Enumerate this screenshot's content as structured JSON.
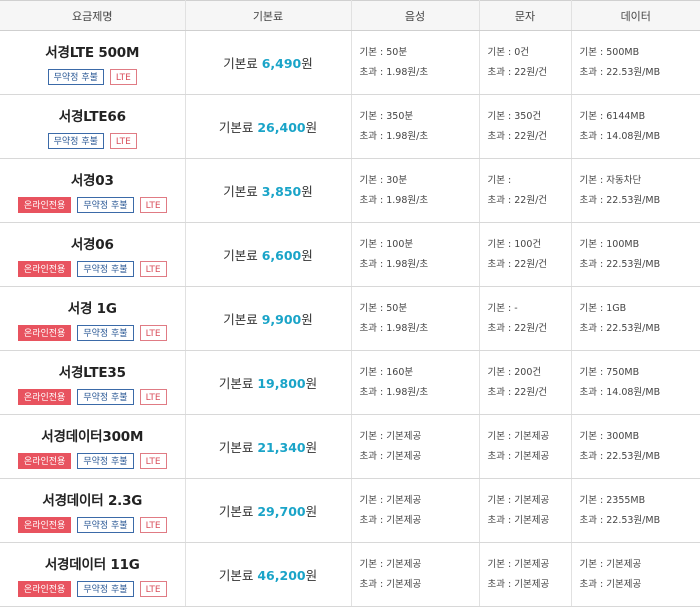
{
  "header": {
    "col_name": "요금제명",
    "col_fee": "기본료",
    "col_voice": "음성",
    "col_sms": "문자",
    "col_data": "데이터"
  },
  "labels": {
    "fee_prefix": "기본료 ",
    "won": "원",
    "basic": "기본 : ",
    "excess": "초과 : "
  },
  "plans": [
    {
      "name": "서경LTE 500M",
      "badges": [
        "무약정 후불",
        "LTE"
      ],
      "fee": "6,490",
      "voice": [
        "50분",
        "1.98원/초"
      ],
      "sms": [
        "0건",
        "22원/건"
      ],
      "data": [
        "500MB",
        "22.53원/MB"
      ]
    },
    {
      "name": "서경LTE66",
      "badges": [
        "무약정 후불",
        "LTE"
      ],
      "fee": "26,400",
      "voice": [
        "350분",
        "1.98원/초"
      ],
      "sms": [
        "350건",
        "22원/건"
      ],
      "data": [
        "6144MB",
        "14.08원/MB"
      ]
    },
    {
      "name": "서경03",
      "badges": [
        "온라인전용",
        "무약정 후불",
        "LTE"
      ],
      "fee": "3,850",
      "voice": [
        "30분",
        "1.98원/초"
      ],
      "sms": [
        "",
        "22원/건"
      ],
      "data": [
        "자동차단",
        "22.53원/MB"
      ]
    },
    {
      "name": "서경06",
      "badges": [
        "온라인전용",
        "무약정 후불",
        "LTE"
      ],
      "fee": "6,600",
      "voice": [
        "100분",
        "1.98원/초"
      ],
      "sms": [
        "100건",
        "22원/건"
      ],
      "data": [
        "100MB",
        "22.53원/MB"
      ]
    },
    {
      "name": "서경 1G",
      "badges": [
        "온라인전용",
        "무약정 후불",
        "LTE"
      ],
      "fee": "9,900",
      "voice": [
        "50분",
        "1.98원/초"
      ],
      "sms": [
        "-",
        "22원/건"
      ],
      "data": [
        "1GB",
        "22.53원/MB"
      ]
    },
    {
      "name": "서경LTE35",
      "badges": [
        "온라인전용",
        "무약정 후불",
        "LTE"
      ],
      "fee": "19,800",
      "voice": [
        "160분",
        "1.98원/초"
      ],
      "sms": [
        "200건",
        "22원/건"
      ],
      "data": [
        "750MB",
        "14.08원/MB"
      ]
    },
    {
      "name": "서경데이터300M",
      "badges": [
        "온라인전용",
        "무약정 후불",
        "LTE"
      ],
      "fee": "21,340",
      "voice": [
        "기본제공",
        "기본제공"
      ],
      "sms": [
        "기본제공",
        "기본제공"
      ],
      "data": [
        "300MB",
        "22.53원/MB"
      ]
    },
    {
      "name": "서경데이터 2.3G",
      "badges": [
        "온라인전용",
        "무약정 후불",
        "LTE"
      ],
      "fee": "29,700",
      "voice": [
        "기본제공",
        "기본제공"
      ],
      "sms": [
        "기본제공",
        "기본제공"
      ],
      "data": [
        "2355MB",
        "22.53원/MB"
      ]
    },
    {
      "name": "서경데이터 11G",
      "badges": [
        "온라인전용",
        "무약정 후불",
        "LTE"
      ],
      "fee": "46,200",
      "voice": [
        "기본제공",
        "기본제공"
      ],
      "sms": [
        "기본제공",
        "기본제공"
      ],
      "data": [
        "기본제공",
        "기본제공"
      ]
    }
  ]
}
